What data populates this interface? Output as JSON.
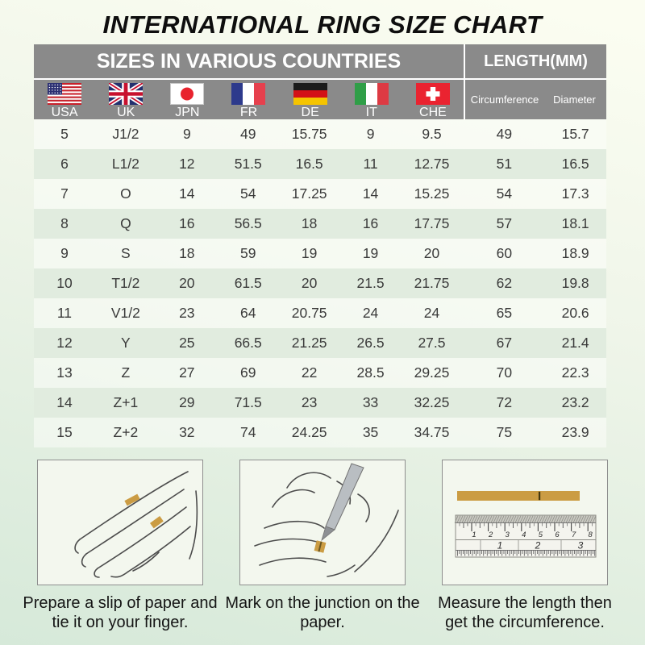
{
  "title": "INTERNATIONAL RING SIZE CHART",
  "table": {
    "header_left": "SIZES IN VARIOUS COUNTRIES",
    "header_right": "LENGTH(MM)",
    "countries": [
      {
        "code": "USA",
        "flag": "usa"
      },
      {
        "code": "UK",
        "flag": "uk"
      },
      {
        "code": "JPN",
        "flag": "jpn"
      },
      {
        "code": "FR",
        "flag": "fr"
      },
      {
        "code": "DE",
        "flag": "de"
      },
      {
        "code": "IT",
        "flag": "it"
      },
      {
        "code": "CHE",
        "flag": "che"
      }
    ],
    "length_columns": [
      "Circumference",
      "Diameter"
    ],
    "rows": [
      [
        "5",
        "J1/2",
        "9",
        "49",
        "15.75",
        "9",
        "9.5",
        "49",
        "15.7"
      ],
      [
        "6",
        "L1/2",
        "12",
        "51.5",
        "16.5",
        "11",
        "12.75",
        "51",
        "16.5"
      ],
      [
        "7",
        "O",
        "14",
        "54",
        "17.25",
        "14",
        "15.25",
        "54",
        "17.3"
      ],
      [
        "8",
        "Q",
        "16",
        "56.5",
        "18",
        "16",
        "17.75",
        "57",
        "18.1"
      ],
      [
        "9",
        "S",
        "18",
        "59",
        "19",
        "19",
        "20",
        "60",
        "18.9"
      ],
      [
        "10",
        "T1/2",
        "20",
        "61.5",
        "20",
        "21.5",
        "21.75",
        "62",
        "19.8"
      ],
      [
        "11",
        "V1/2",
        "23",
        "64",
        "20.75",
        "24",
        "24",
        "65",
        "20.6"
      ],
      [
        "12",
        "Y",
        "25",
        "66.5",
        "21.25",
        "26.5",
        "27.5",
        "67",
        "21.4"
      ],
      [
        "13",
        "Z",
        "27",
        "69",
        "22",
        "28.5",
        "29.25",
        "70",
        "22.3"
      ],
      [
        "14",
        "Z+1",
        "29",
        "71.5",
        "23",
        "33",
        "32.25",
        "72",
        "23.2"
      ],
      [
        "15",
        "Z+2",
        "32",
        "74",
        "24.25",
        "35",
        "34.75",
        "75",
        "23.9"
      ]
    ]
  },
  "instructions": [
    {
      "caption": "Prepare a slip of paper and tie it on your finger.",
      "illustration": "hand-with-paper"
    },
    {
      "caption": "Mark on the junction on the paper.",
      "illustration": "mark-junction"
    },
    {
      "caption": "Measure the length then get the circumference.",
      "illustration": "ruler-measure"
    }
  ],
  "ruler": {
    "cm_numbers": [
      "1",
      "2",
      "3",
      "4",
      "5",
      "6",
      "7",
      "8"
    ],
    "inch_numbers": [
      "1",
      "2",
      "3"
    ]
  },
  "colors": {
    "header_gray": "#8a8a8a",
    "row_green": "#e1ecdf",
    "paper_tan": "#cb9c43",
    "text_dark": "#3a3a3a",
    "background_top": "#fbfdf1",
    "background_bottom": "#d6e9d9"
  },
  "chart_data": {
    "type": "table",
    "title": "INTERNATIONAL RING SIZE CHART",
    "section_headers": [
      "SIZES IN VARIOUS COUNTRIES",
      "LENGTH(MM)"
    ],
    "columns": [
      "USA",
      "UK",
      "JPN",
      "FR",
      "DE",
      "IT",
      "CHE",
      "Circumference",
      "Diameter"
    ],
    "rows": [
      [
        "5",
        "J1/2",
        "9",
        "49",
        "15.75",
        "9",
        "9.5",
        "49",
        "15.7"
      ],
      [
        "6",
        "L1/2",
        "12",
        "51.5",
        "16.5",
        "11",
        "12.75",
        "51",
        "16.5"
      ],
      [
        "7",
        "O",
        "14",
        "54",
        "17.25",
        "14",
        "15.25",
        "54",
        "17.3"
      ],
      [
        "8",
        "Q",
        "16",
        "56.5",
        "18",
        "16",
        "17.75",
        "57",
        "18.1"
      ],
      [
        "9",
        "S",
        "18",
        "59",
        "19",
        "19",
        "20",
        "60",
        "18.9"
      ],
      [
        "10",
        "T1/2",
        "20",
        "61.5",
        "20",
        "21.5",
        "21.75",
        "62",
        "19.8"
      ],
      [
        "11",
        "V1/2",
        "23",
        "64",
        "20.75",
        "24",
        "24",
        "65",
        "20.6"
      ],
      [
        "12",
        "Y",
        "25",
        "66.5",
        "21.25",
        "26.5",
        "27.5",
        "67",
        "21.4"
      ],
      [
        "13",
        "Z",
        "27",
        "69",
        "22",
        "28.5",
        "29.25",
        "70",
        "22.3"
      ],
      [
        "14",
        "Z+1",
        "29",
        "71.5",
        "23",
        "33",
        "32.25",
        "72",
        "23.2"
      ],
      [
        "15",
        "Z+2",
        "32",
        "74",
        "24.25",
        "35",
        "34.75",
        "75",
        "23.9"
      ]
    ]
  }
}
